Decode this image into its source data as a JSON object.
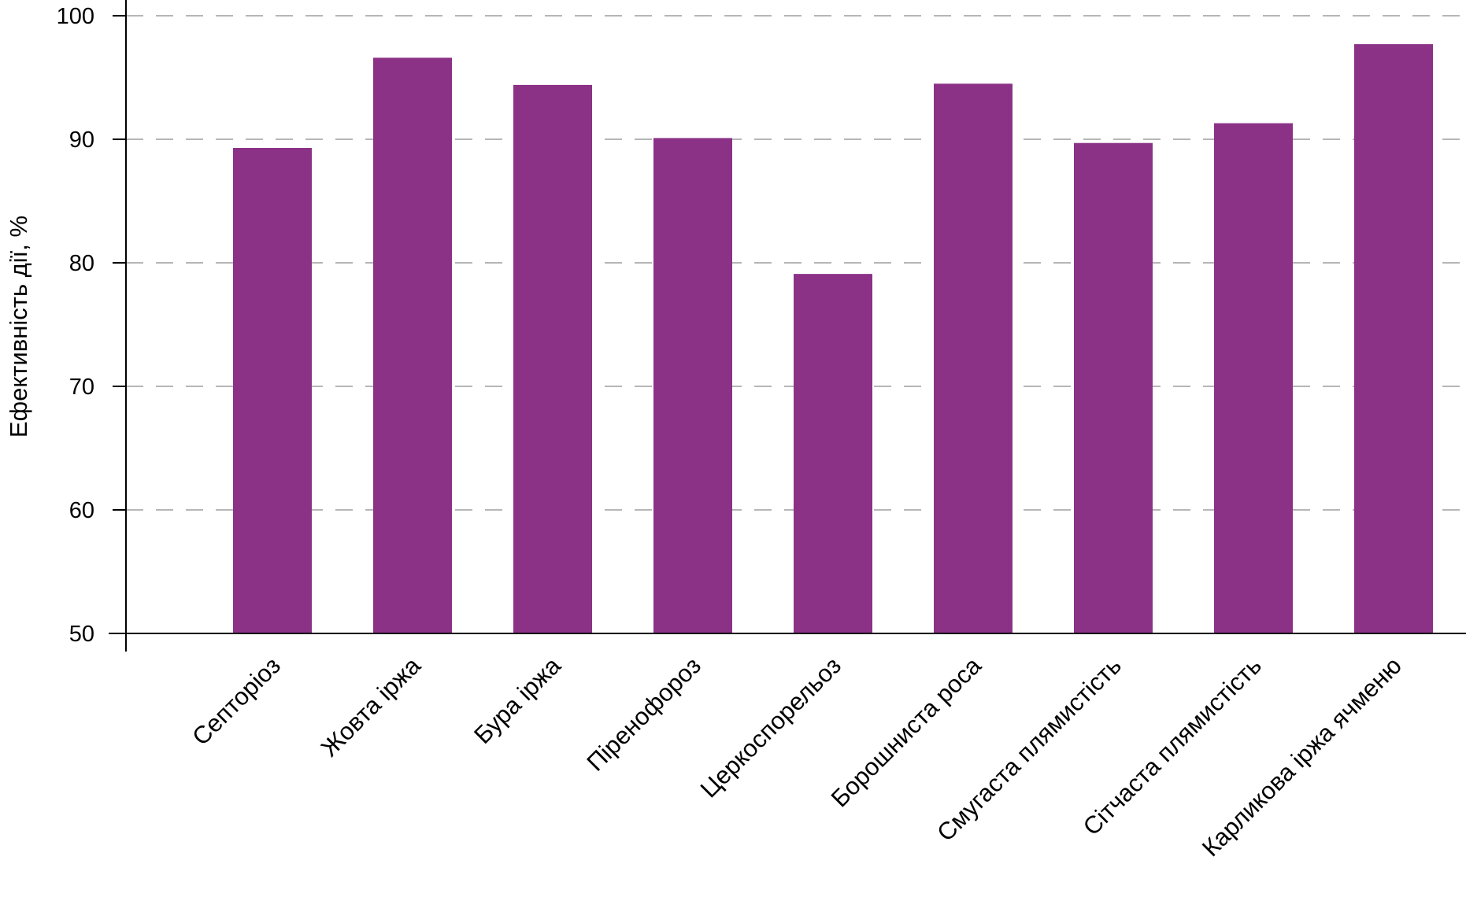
{
  "chart_data": {
    "type": "bar",
    "title": "",
    "xlabel": "",
    "ylabel": "Ефективність дії, %",
    "ylim": [
      50,
      100
    ],
    "yticks": [
      50,
      60,
      70,
      80,
      90,
      100
    ],
    "grid": "horizontal-dashed",
    "legend": "none",
    "bar_color": "#8b3287",
    "categories": [
      "Септоріоз",
      "Жовта іржа",
      "Бура іржа",
      "Піренофороз",
      "Церкоспорельоз",
      "Борошниста роса",
      "Смугаста плямистість",
      "Сітчаста плямистість",
      "Карликова іржа ячменю"
    ],
    "values": [
      89.3,
      96.6,
      94.4,
      90.1,
      79.1,
      94.5,
      89.7,
      91.3,
      97.7
    ]
  }
}
